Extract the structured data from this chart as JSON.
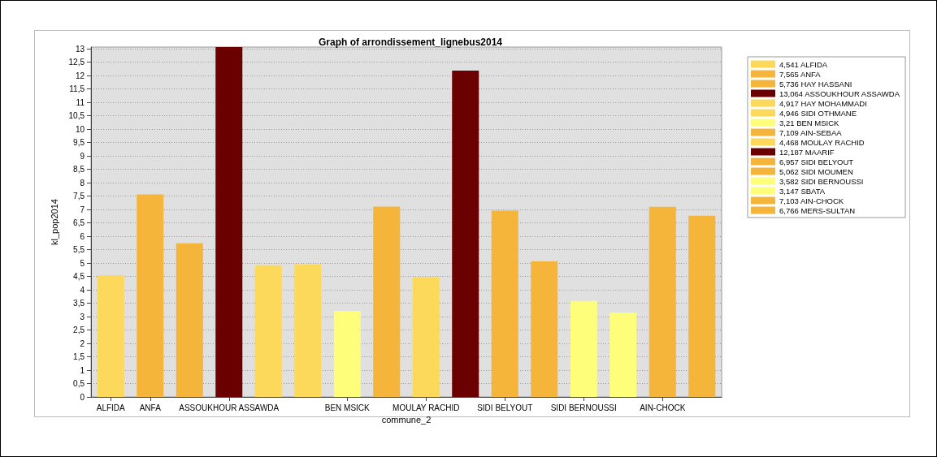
{
  "chart_data": {
    "type": "bar",
    "title": "Graph of arrondissement_lignebus2014",
    "xlabel": "commune_2",
    "ylabel": "kl_pop2014",
    "categories": [
      "ALFIDA",
      "ANFA",
      null,
      "ASSOUKHOUR ASSAWDA",
      null,
      null,
      "BEN MSICK",
      null,
      "MOULAY RACHID",
      null,
      "SIDI BELYOUT",
      null,
      "SIDI BERNOUSSI",
      null,
      "AIN-CHOCK",
      null
    ],
    "stacked": true,
    "series": [
      {
        "name": "4,541 ALFIDA",
        "color": "#fcd95a",
        "values": [
          4.541,
          null,
          null,
          null,
          null,
          null,
          null,
          null,
          null,
          null,
          null,
          null,
          null,
          null,
          null,
          null
        ]
      },
      {
        "name": "7,565 ANFA",
        "color": "#f5b43a",
        "values": [
          null,
          7.565,
          null,
          null,
          null,
          null,
          null,
          null,
          null,
          null,
          null,
          null,
          null,
          null,
          null,
          null
        ]
      },
      {
        "name": "5,736 HAY HASSANI",
        "color": "#f5b43a",
        "values": [
          null,
          null,
          5.736,
          null,
          null,
          null,
          null,
          null,
          null,
          null,
          null,
          null,
          null,
          null,
          null,
          null
        ]
      },
      {
        "name": "13,064 ASSOUKHOUR ASSAWDA",
        "color": "#6b0000",
        "values": [
          null,
          null,
          null,
          13.064,
          null,
          null,
          null,
          null,
          null,
          null,
          null,
          null,
          null,
          null,
          null,
          null
        ]
      },
      {
        "name": "4,917 HAY MOHAMMADI",
        "color": "#fcd95a",
        "values": [
          null,
          null,
          null,
          null,
          4.917,
          null,
          null,
          null,
          null,
          null,
          null,
          null,
          null,
          null,
          null,
          null
        ]
      },
      {
        "name": "4,946 SIDI OTHMANE",
        "color": "#fcd95a",
        "values": [
          null,
          null,
          null,
          null,
          null,
          4.946,
          null,
          null,
          null,
          null,
          null,
          null,
          null,
          null,
          null,
          null
        ]
      },
      {
        "name": "3,21 BEN MSICK",
        "color": "#fefe7a",
        "values": [
          null,
          null,
          null,
          null,
          null,
          null,
          3.21,
          null,
          null,
          null,
          null,
          null,
          null,
          null,
          null,
          null
        ]
      },
      {
        "name": "7,109 AIN-SEBAA",
        "color": "#f5b43a",
        "values": [
          null,
          null,
          null,
          null,
          null,
          null,
          null,
          7.109,
          null,
          null,
          null,
          null,
          null,
          null,
          null,
          null
        ]
      },
      {
        "name": "4,468 MOULAY RACHID",
        "color": "#fcd95a",
        "values": [
          null,
          null,
          null,
          null,
          null,
          null,
          null,
          null,
          4.468,
          null,
          null,
          null,
          null,
          null,
          null,
          null
        ]
      },
      {
        "name": "12,187 MAARIF",
        "color": "#6b0000",
        "values": [
          null,
          null,
          null,
          null,
          null,
          null,
          null,
          null,
          null,
          12.187,
          null,
          null,
          null,
          null,
          null,
          null
        ]
      },
      {
        "name": "6,957 SIDI BELYOUT",
        "color": "#f5b43a",
        "values": [
          null,
          null,
          null,
          null,
          null,
          null,
          null,
          null,
          null,
          null,
          6.957,
          null,
          null,
          null,
          null,
          null
        ]
      },
      {
        "name": "5,062 SIDI MOUMEN",
        "color": "#f5b43a",
        "values": [
          null,
          null,
          null,
          null,
          null,
          null,
          null,
          null,
          null,
          null,
          null,
          5.062,
          null,
          null,
          null,
          null
        ]
      },
      {
        "name": "3,582 SIDI BERNOUSSI",
        "color": "#fefe7a",
        "values": [
          null,
          null,
          null,
          null,
          null,
          null,
          null,
          null,
          null,
          null,
          null,
          null,
          3.582,
          null,
          null,
          null
        ]
      },
      {
        "name": "3,147 SBATA",
        "color": "#fefe7a",
        "values": [
          null,
          null,
          null,
          null,
          null,
          null,
          null,
          null,
          null,
          null,
          null,
          null,
          null,
          3.147,
          null,
          null
        ]
      },
      {
        "name": "7,103 AIN-CHOCK",
        "color": "#f5b43a",
        "values": [
          null,
          null,
          null,
          null,
          null,
          null,
          null,
          null,
          null,
          null,
          null,
          null,
          null,
          null,
          7.103,
          null
        ]
      },
      {
        "name": "6,766 MERS-SULTAN",
        "color": "#f5b43a",
        "values": [
          null,
          null,
          null,
          null,
          null,
          null,
          null,
          null,
          null,
          null,
          null,
          null,
          null,
          null,
          null,
          6.766
        ]
      }
    ],
    "ylim": [
      0,
      13.064
    ],
    "yticks": [
      0,
      {
        "value": 0.5,
        "label": "0,5"
      },
      1,
      {
        "value": 1.5,
        "label": "1,5"
      },
      2,
      {
        "value": 2.5,
        "label": "2,5"
      },
      3,
      {
        "value": 3.5,
        "label": "3,5"
      },
      4,
      {
        "value": 4.5,
        "label": "4,5"
      },
      5,
      {
        "value": 5.5,
        "label": "5,5"
      },
      6,
      {
        "value": 6.5,
        "label": "6,5"
      },
      7,
      {
        "value": 7.5,
        "label": "7,5"
      },
      8,
      {
        "value": 8.5,
        "label": "8,5"
      },
      9,
      {
        "value": 9.5,
        "label": "9,5"
      },
      10,
      {
        "value": 10.5,
        "label": "10,5"
      },
      11,
      {
        "value": 11.5,
        "label": "11,5"
      },
      12,
      {
        "value": 12.5,
        "label": "12,5"
      },
      13
    ],
    "grid": "y",
    "legend": "top right"
  }
}
